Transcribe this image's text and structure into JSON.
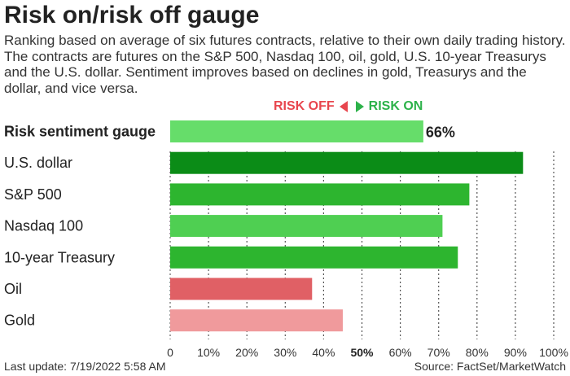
{
  "title": "Risk on/risk off gauge",
  "subtitle": "Ranking based on average of six futures contracts, relative to their own daily trading history. The contracts are futures on the S&P 500, Nasdaq 100, oil, gold, U.S. 10-year Treasurys and the U.S. dollar. Sentiment improves based on declines in gold, Treasurys and the dollar, and vice versa.",
  "legend": {
    "risk_off": "RISK OFF",
    "risk_on": "RISK ON",
    "risk_off_color": "#e8464e",
    "risk_on_color": "#2db24a"
  },
  "chart_data": {
    "type": "bar",
    "orientation": "horizontal",
    "title": "Risk on/risk off gauge",
    "categories": [
      "Risk sentiment gauge",
      "U.S. dollar",
      "S&P 500",
      "Nasdaq 100",
      "10-year Treasury",
      "Oil",
      "Gold"
    ],
    "values": [
      66,
      92,
      78,
      71,
      75,
      37,
      45
    ],
    "value_labels": [
      "66%",
      "",
      "",
      "",
      "",
      "",
      ""
    ],
    "bold_categories": [
      "Risk sentiment gauge"
    ],
    "colors": [
      "#66dd6a",
      "#0b8c17",
      "#2db52f",
      "#4fcf52",
      "#2db52f",
      "#e06065",
      "#f09a9c"
    ],
    "xlim": [
      0,
      100
    ],
    "x_ticks": [
      "0",
      "10%",
      "20%",
      "30%",
      "40%",
      "50%",
      "60%",
      "70%",
      "80%",
      "90%",
      "100%"
    ],
    "x_tick_values": [
      0,
      10,
      20,
      30,
      40,
      50,
      60,
      70,
      80,
      90,
      100
    ],
    "bold_tick": "50%",
    "grid": "vertical dotted"
  },
  "footer": {
    "last_update": "Last update: 7/19/2022 5:58 AM",
    "source": "Source: FactSet/MarketWatch"
  }
}
